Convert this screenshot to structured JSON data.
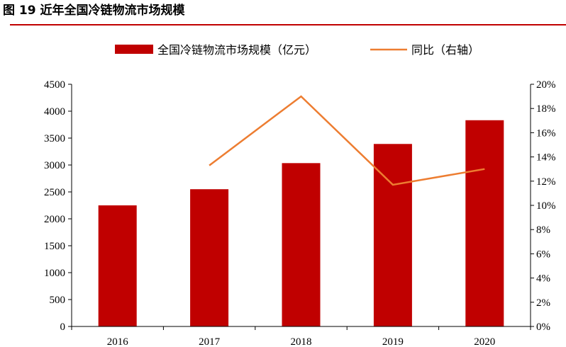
{
  "figure": {
    "title": "图 19 近年全国冷链物流市场规模"
  },
  "colors": {
    "bar": "#c00000",
    "line": "#ed7d31",
    "axis": "#000000",
    "rule": "#c00000"
  },
  "chart_data": {
    "type": "bar",
    "categories": [
      "2016",
      "2017",
      "2018",
      "2019",
      "2020"
    ],
    "series": [
      {
        "name": "全国冷链物流市场规模（亿元）",
        "type": "bar",
        "axis": "left",
        "values": [
          2250,
          2550,
          3035,
          3391,
          3832
        ]
      },
      {
        "name": "同比（右轴）",
        "type": "line",
        "axis": "right",
        "values": [
          null,
          13.3,
          19.0,
          11.7,
          13.0
        ]
      }
    ],
    "y_left": {
      "min": 0,
      "max": 4500,
      "step": 500,
      "ticks": [
        "0",
        "500",
        "1000",
        "1500",
        "2000",
        "2500",
        "3000",
        "3500",
        "4000",
        "4500"
      ]
    },
    "y_right": {
      "min": 0,
      "max": 20,
      "step": 2,
      "ticks": [
        "0%",
        "2%",
        "4%",
        "6%",
        "8%",
        "10%",
        "12%",
        "14%",
        "16%",
        "18%",
        "20%"
      ]
    },
    "grid": false,
    "legend_position": "top"
  }
}
